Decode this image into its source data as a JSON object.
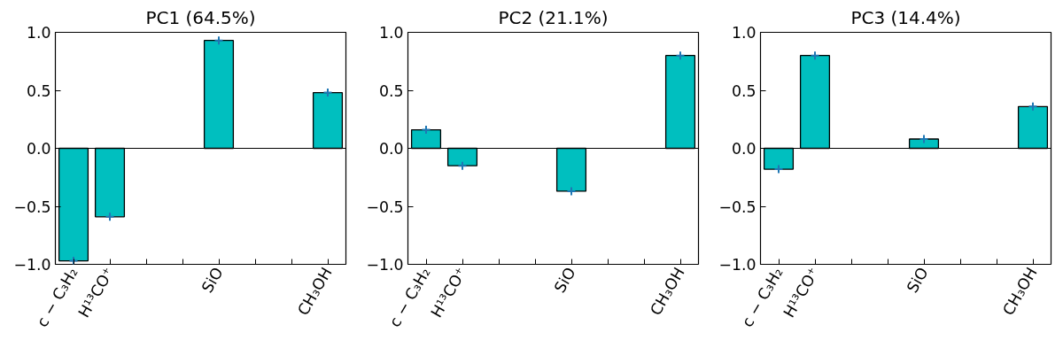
{
  "chart_data": [
    {
      "type": "bar",
      "title": "PC1 (64.5%)",
      "categories": [
        "c − C₃H₂",
        "H¹³CO⁺",
        null,
        null,
        "SiO",
        null,
        null,
        "CH₃OH"
      ],
      "ylim": [
        -1.0,
        1.0
      ],
      "yticks": [
        {
          "value": -1.0,
          "label": "−1.0"
        },
        {
          "value": -0.5,
          "label": "−0.5"
        },
        {
          "value": 0.0,
          "label": "0.0"
        },
        {
          "value": 0.5,
          "label": "0.5"
        },
        {
          "value": 1.0,
          "label": "1.0"
        }
      ],
      "grid": false,
      "ref_lines": [
        {
          "axis": "y",
          "value": 0,
          "color": "#000000"
        }
      ],
      "series": [
        {
          "color": "#00bfbf",
          "values": [
            -0.97,
            -0.59,
            null,
            null,
            0.93,
            null,
            null,
            0.48
          ]
        },
        {
          "type": "scatter",
          "color": "#1f77b4",
          "marker": "cross",
          "values": [
            -0.97,
            -0.59,
            null,
            null,
            0.93,
            null,
            null,
            0.48
          ]
        }
      ]
    },
    {
      "type": "bar",
      "title": "PC2 (21.1%)",
      "categories": [
        "c − C₃H₂",
        "H¹³CO⁺",
        null,
        null,
        "SiO",
        null,
        null,
        "CH₃OH"
      ],
      "ylim": [
        -1.0,
        1.0
      ],
      "yticks": [
        {
          "value": -1.0,
          "label": "−1.0"
        },
        {
          "value": -0.5,
          "label": "−0.5"
        },
        {
          "value": 0.0,
          "label": "0.0"
        },
        {
          "value": 0.5,
          "label": "0.5"
        },
        {
          "value": 1.0,
          "label": "1.0"
        }
      ],
      "grid": false,
      "ref_lines": [
        {
          "axis": "y",
          "value": 0,
          "color": "#000000"
        }
      ],
      "series": [
        {
          "color": "#00bfbf",
          "values": [
            0.16,
            -0.15,
            null,
            null,
            -0.37,
            null,
            null,
            0.8
          ]
        },
        {
          "type": "scatter",
          "color": "#1f77b4",
          "marker": "cross",
          "values": [
            0.16,
            -0.15,
            null,
            null,
            -0.37,
            null,
            null,
            0.8
          ]
        }
      ]
    },
    {
      "type": "bar",
      "title": "PC3 (14.4%)",
      "categories": [
        "c − C₃H₂",
        "H¹³CO⁺",
        null,
        null,
        "SiO",
        null,
        null,
        "CH₃OH"
      ],
      "ylim": [
        -1.0,
        1.0
      ],
      "yticks": [
        {
          "value": -1.0,
          "label": "−1.0"
        },
        {
          "value": -0.5,
          "label": "−0.5"
        },
        {
          "value": 0.0,
          "label": "0.0"
        },
        {
          "value": 0.5,
          "label": "0.5"
        },
        {
          "value": 1.0,
          "label": "1.0"
        }
      ],
      "grid": false,
      "ref_lines": [
        {
          "axis": "y",
          "value": 0,
          "color": "#000000"
        }
      ],
      "series": [
        {
          "color": "#00bfbf",
          "values": [
            -0.18,
            0.8,
            null,
            null,
            0.08,
            null,
            null,
            0.36
          ]
        },
        {
          "type": "scatter",
          "color": "#1f77b4",
          "marker": "cross",
          "values": [
            -0.18,
            0.8,
            null,
            null,
            0.08,
            null,
            null,
            0.36
          ]
        }
      ]
    }
  ]
}
